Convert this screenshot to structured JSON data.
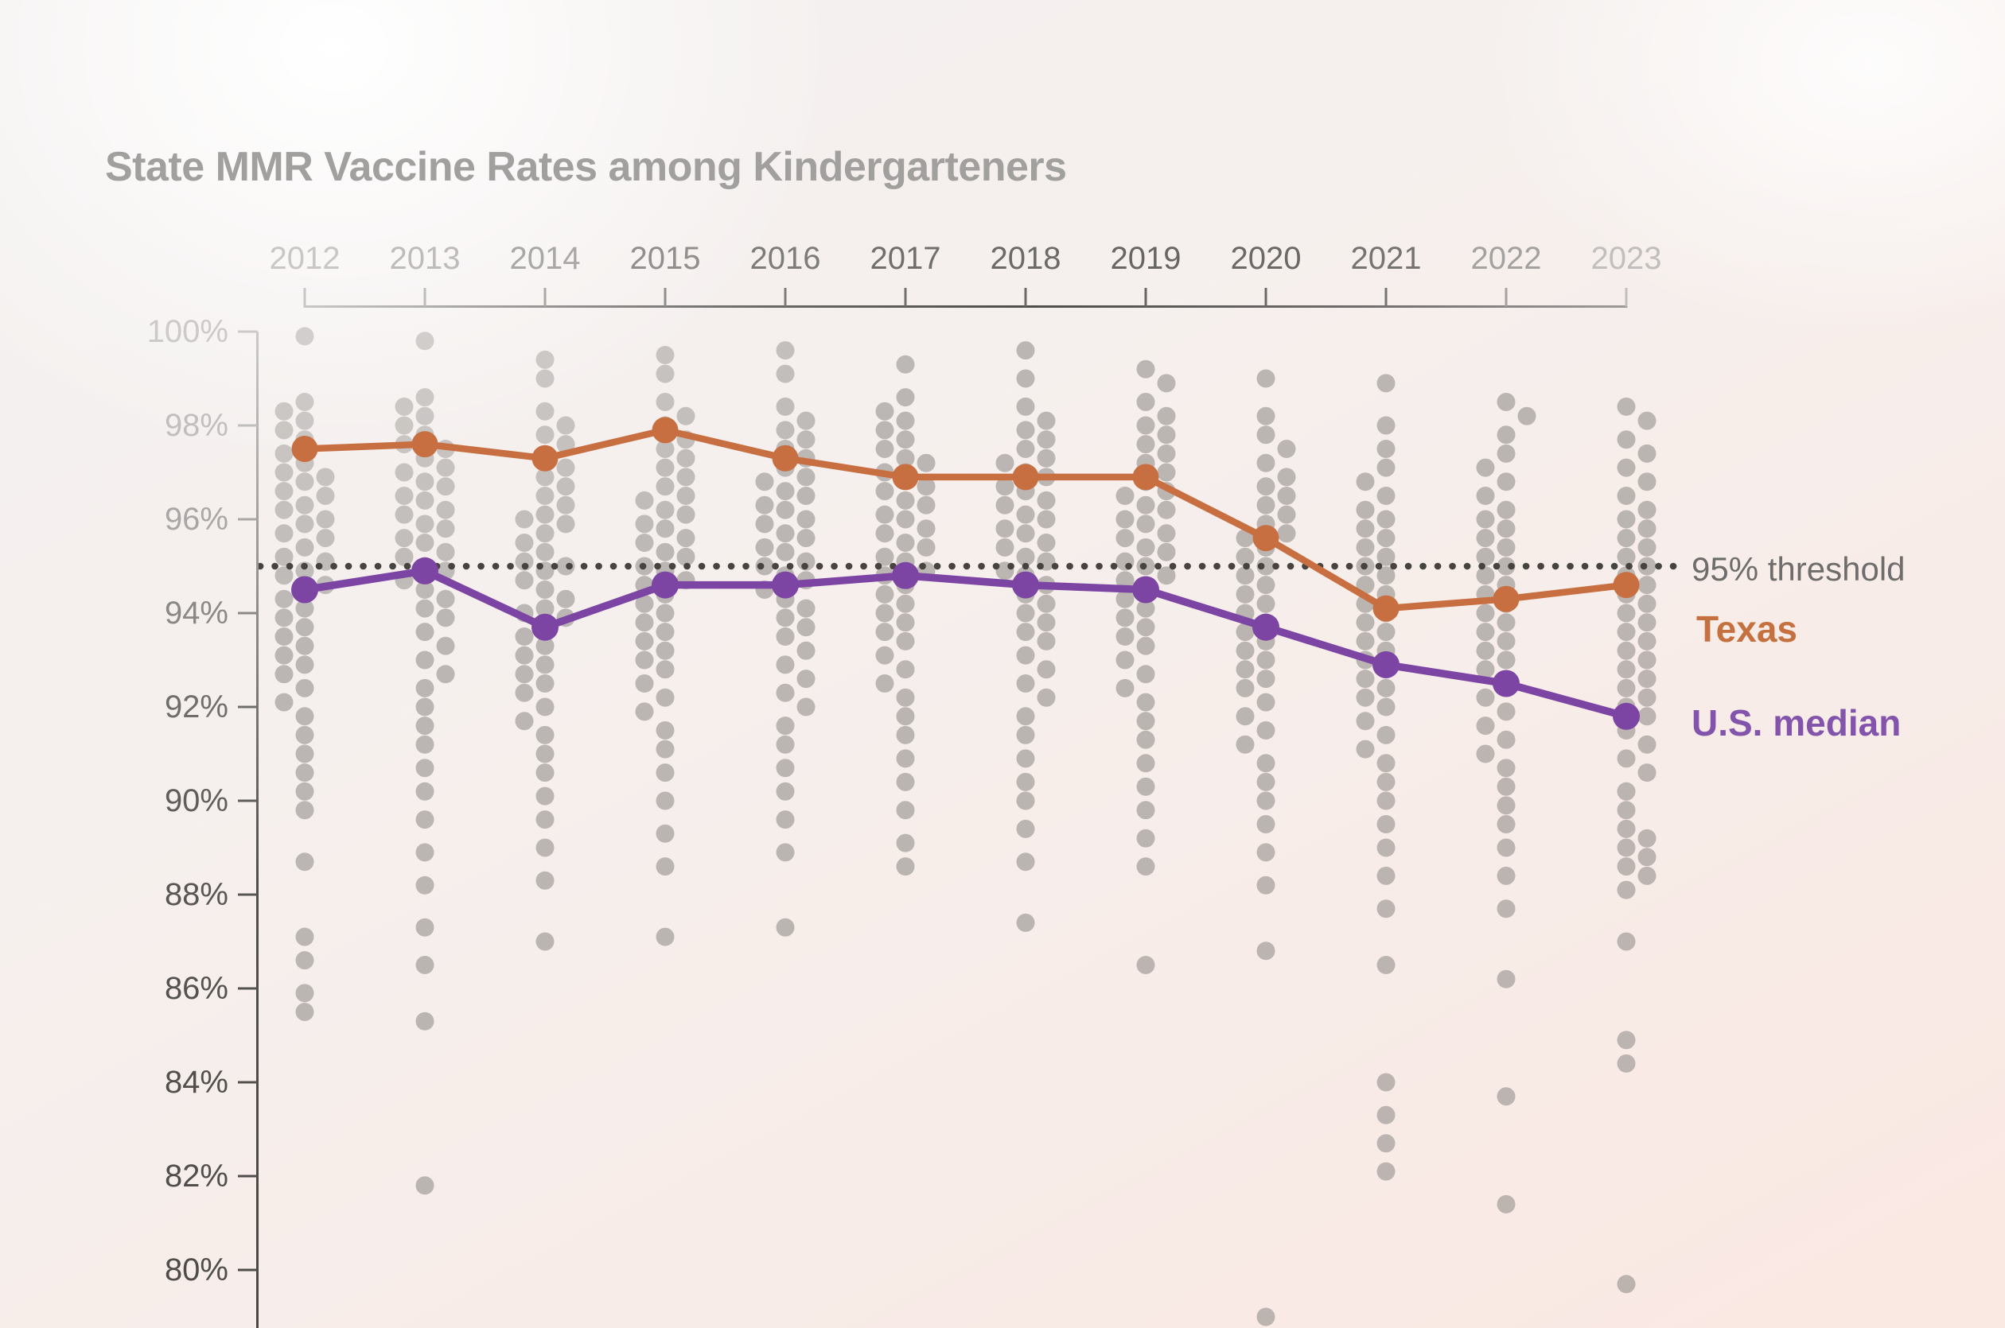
{
  "title": "State MMR Vaccine Rates among Kindergarteners",
  "legend": {
    "threshold": "95% threshold",
    "texas": "Texas",
    "us_median": "U.S. median"
  },
  "colors": {
    "texas": "#c86f42",
    "texas_label": "#c5703f",
    "us_median": "#7d45a3",
    "us_median_label": "#8354ab",
    "threshold_dotted": "#474440",
    "state_dot": "#8a8784",
    "title_text": "#a2a09e",
    "threshold_text": "#6f6d6b"
  },
  "chart_data": {
    "type": "line+beeswarm",
    "title": "State MMR Vaccine Rates among Kindergarteners",
    "x": [
      2012,
      2013,
      2014,
      2015,
      2016,
      2017,
      2018,
      2019,
      2020,
      2021,
      2022,
      2023
    ],
    "x_tick_labels": [
      "2012",
      "2013",
      "2014",
      "2015",
      "2016",
      "2017",
      "2018",
      "2019",
      "2020",
      "2021",
      "2022",
      "2023"
    ],
    "y_tick_values": [
      100,
      98,
      96,
      94,
      92,
      90,
      88,
      86,
      84,
      82,
      80
    ],
    "y_tick_labels": [
      "100%",
      "98%",
      "96%",
      "94%",
      "92%",
      "90%",
      "88%",
      "86%",
      "84%",
      "82%",
      "80%"
    ],
    "ylim": [
      78.8,
      100.4
    ],
    "grid": "off",
    "legend_position": "right",
    "threshold": {
      "value": 95,
      "label": "95% threshold"
    },
    "series": [
      {
        "name": "Texas",
        "color": "#c86f42",
        "values": [
          97.5,
          97.6,
          97.3,
          97.9,
          97.3,
          96.9,
          96.9,
          96.9,
          95.6,
          94.1,
          94.3,
          94.6
        ]
      },
      {
        "name": "U.S. median",
        "color": "#7d45a3",
        "values": [
          94.5,
          94.9,
          93.7,
          94.6,
          94.6,
          94.8,
          94.6,
          94.5,
          93.7,
          92.9,
          92.5,
          91.8
        ]
      }
    ],
    "state_distributions": {
      "2012": [
        99.9,
        98.5,
        98.3,
        98.1,
        97.9,
        97.7,
        97.4,
        97.2,
        97.0,
        96.9,
        96.8,
        96.6,
        96.5,
        96.3,
        96.2,
        96.0,
        95.9,
        95.7,
        95.6,
        95.4,
        95.2,
        95.1,
        94.9,
        94.8,
        94.6,
        94.5,
        94.3,
        94.1,
        93.9,
        93.7,
        93.5,
        93.3,
        93.1,
        92.9,
        92.7,
        92.4,
        92.1,
        91.8,
        91.4,
        91.0,
        90.6,
        90.2,
        89.8,
        88.7,
        87.1,
        86.6,
        85.9,
        85.5
      ],
      "2013": [
        99.8,
        98.6,
        98.4,
        98.2,
        98.0,
        97.8,
        97.6,
        97.5,
        97.3,
        97.1,
        97.0,
        96.8,
        96.7,
        96.5,
        96.4,
        96.2,
        96.1,
        95.9,
        95.8,
        95.6,
        95.5,
        95.3,
        95.2,
        95.0,
        94.9,
        94.7,
        94.5,
        94.3,
        94.1,
        93.9,
        93.6,
        93.3,
        93.0,
        92.7,
        92.4,
        92.0,
        91.6,
        91.2,
        90.7,
        90.2,
        89.6,
        88.9,
        88.2,
        87.3,
        86.5,
        85.3,
        81.8
      ],
      "2014": [
        99.4,
        99.0,
        98.3,
        98.0,
        97.8,
        97.6,
        97.3,
        97.1,
        96.9,
        96.7,
        96.5,
        96.3,
        96.1,
        96.0,
        95.9,
        95.7,
        95.5,
        95.3,
        95.1,
        95.0,
        94.9,
        94.7,
        94.5,
        94.3,
        94.1,
        94.0,
        93.9,
        93.7,
        93.5,
        93.3,
        93.1,
        92.9,
        92.7,
        92.5,
        92.3,
        92.0,
        91.7,
        91.4,
        91.0,
        90.6,
        90.1,
        89.6,
        89.0,
        88.3,
        87.0
      ],
      "2015": [
        99.5,
        99.1,
        98.5,
        98.2,
        98.0,
        97.7,
        97.5,
        97.3,
        97.1,
        96.9,
        96.7,
        96.5,
        96.4,
        96.2,
        96.1,
        95.9,
        95.8,
        95.6,
        95.5,
        95.3,
        95.2,
        95.0,
        94.9,
        94.7,
        94.6,
        94.4,
        94.2,
        94.0,
        93.8,
        93.6,
        93.4,
        93.2,
        93.0,
        92.8,
        92.5,
        92.2,
        91.9,
        91.5,
        91.1,
        90.6,
        90.0,
        89.3,
        88.6,
        87.1
      ],
      "2016": [
        99.6,
        99.1,
        98.4,
        98.1,
        97.9,
        97.7,
        97.5,
        97.3,
        97.1,
        96.9,
        96.8,
        96.6,
        96.5,
        96.3,
        96.2,
        96.0,
        95.9,
        95.7,
        95.6,
        95.4,
        95.3,
        95.1,
        95.0,
        94.8,
        94.7,
        94.5,
        94.3,
        94.1,
        93.9,
        93.7,
        93.5,
        93.2,
        92.9,
        92.6,
        92.3,
        92.0,
        91.6,
        91.2,
        90.7,
        90.2,
        89.6,
        88.9,
        87.3
      ],
      "2017": [
        99.3,
        98.6,
        98.3,
        98.1,
        97.9,
        97.7,
        97.5,
        97.3,
        97.2,
        97.0,
        96.9,
        96.7,
        96.6,
        96.4,
        96.3,
        96.1,
        96.0,
        95.8,
        95.7,
        95.5,
        95.4,
        95.2,
        95.1,
        94.9,
        94.8,
        94.6,
        94.4,
        94.2,
        94.0,
        93.8,
        93.6,
        93.4,
        93.1,
        92.8,
        92.5,
        92.2,
        91.8,
        91.4,
        90.9,
        90.4,
        89.8,
        89.1,
        88.6
      ],
      "2018": [
        99.6,
        99.0,
        98.4,
        98.1,
        97.9,
        97.7,
        97.5,
        97.3,
        97.2,
        97.0,
        96.9,
        96.7,
        96.6,
        96.4,
        96.3,
        96.1,
        96.0,
        95.8,
        95.7,
        95.5,
        95.4,
        95.2,
        95.1,
        94.9,
        94.8,
        94.6,
        94.4,
        94.2,
        94.0,
        93.8,
        93.6,
        93.4,
        93.1,
        92.8,
        92.5,
        92.2,
        91.8,
        91.4,
        90.9,
        90.4,
        90.0,
        89.4,
        88.7,
        87.4
      ],
      "2019": [
        99.2,
        98.9,
        98.5,
        98.2,
        98.0,
        97.8,
        97.6,
        97.4,
        97.2,
        97.0,
        96.8,
        96.6,
        96.5,
        96.3,
        96.2,
        96.0,
        95.9,
        95.7,
        95.6,
        95.4,
        95.3,
        95.1,
        95.0,
        94.8,
        94.7,
        94.5,
        94.3,
        94.1,
        93.9,
        93.7,
        93.5,
        93.3,
        93.0,
        92.7,
        92.4,
        92.1,
        91.7,
        91.3,
        90.8,
        90.3,
        89.8,
        89.2,
        88.6,
        86.5
      ],
      "2020": [
        99.0,
        98.2,
        97.8,
        97.5,
        97.2,
        96.9,
        96.7,
        96.5,
        96.3,
        96.1,
        95.9,
        95.7,
        95.6,
        95.4,
        95.2,
        95.0,
        94.8,
        94.6,
        94.4,
        94.2,
        94.0,
        93.8,
        93.6,
        93.4,
        93.2,
        93.0,
        92.8,
        92.6,
        92.4,
        92.1,
        91.8,
        91.5,
        91.2,
        90.8,
        90.4,
        90.0,
        89.5,
        88.9,
        88.2,
        86.8,
        79.0
      ],
      "2021": [
        98.9,
        98.0,
        97.5,
        97.1,
        96.8,
        96.5,
        96.2,
        96.0,
        95.8,
        95.6,
        95.4,
        95.2,
        95.0,
        94.8,
        94.6,
        94.4,
        94.2,
        94.0,
        93.8,
        93.6,
        93.4,
        93.2,
        93.0,
        92.8,
        92.6,
        92.4,
        92.2,
        92.0,
        91.7,
        91.4,
        91.1,
        90.8,
        90.4,
        90.0,
        89.5,
        89.0,
        88.4,
        87.7,
        86.5,
        84.0,
        83.3,
        82.7,
        82.1
      ],
      "2022": [
        98.5,
        98.2,
        97.8,
        97.4,
        97.1,
        96.8,
        96.5,
        96.2,
        96.0,
        95.8,
        95.6,
        95.4,
        95.2,
        95.0,
        94.8,
        94.6,
        94.4,
        94.2,
        94.0,
        93.8,
        93.6,
        93.4,
        93.2,
        93.0,
        92.8,
        92.5,
        92.2,
        91.9,
        91.6,
        91.3,
        91.0,
        90.7,
        90.3,
        89.9,
        89.5,
        89.0,
        88.4,
        87.7,
        86.2,
        83.7,
        81.4
      ],
      "2023": [
        98.4,
        98.1,
        97.7,
        97.4,
        97.1,
        96.8,
        96.5,
        96.2,
        96.0,
        95.8,
        95.6,
        95.4,
        95.2,
        95.0,
        94.8,
        94.6,
        94.4,
        94.2,
        94.0,
        93.8,
        93.6,
        93.4,
        93.2,
        93.0,
        92.8,
        92.6,
        92.4,
        92.2,
        92.0,
        91.8,
        91.5,
        91.2,
        90.9,
        90.6,
        90.2,
        89.8,
        89.4,
        89.2,
        89.0,
        88.8,
        88.6,
        88.4,
        88.1,
        87.0,
        84.9,
        84.4,
        79.7
      ]
    }
  }
}
